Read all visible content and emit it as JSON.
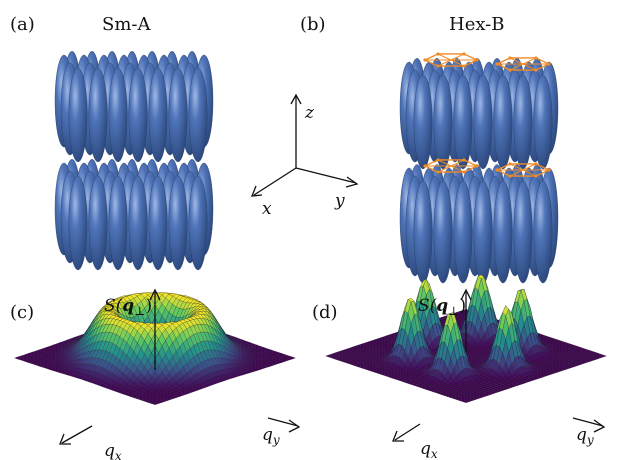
{
  "panels": [
    {
      "id": "a",
      "tag": "(a)",
      "title": "Sm-A"
    },
    {
      "id": "b",
      "tag": "(b)",
      "title": "Hex-B"
    },
    {
      "id": "c",
      "tag": "(c)",
      "ylabel_main": "S(",
      "ylabel_q": "q",
      "ylabel_sub": "⊥",
      "ylabel_close": ")",
      "qx_q": "q",
      "qx_sub": "x",
      "qy_q": "q",
      "qy_sub": "y"
    },
    {
      "id": "d",
      "tag": "(d)",
      "ylabel_main": "S(",
      "ylabel_q": "q",
      "ylabel_sub": "⊥",
      "ylabel_close": ")",
      "qx_q": "q",
      "qx_sub": "x",
      "qy_q": "q",
      "qy_sub": "y"
    }
  ],
  "axes": {
    "z": "z",
    "x": "x",
    "y": "y"
  },
  "colors": {
    "molecule": "#4c72b0",
    "molecule_dark": "#2d4a7a",
    "hex_lines": "#f08a24",
    "viridis_low": "#440154",
    "viridis_mid": "#21918c",
    "viridis_high": "#fde725"
  }
}
